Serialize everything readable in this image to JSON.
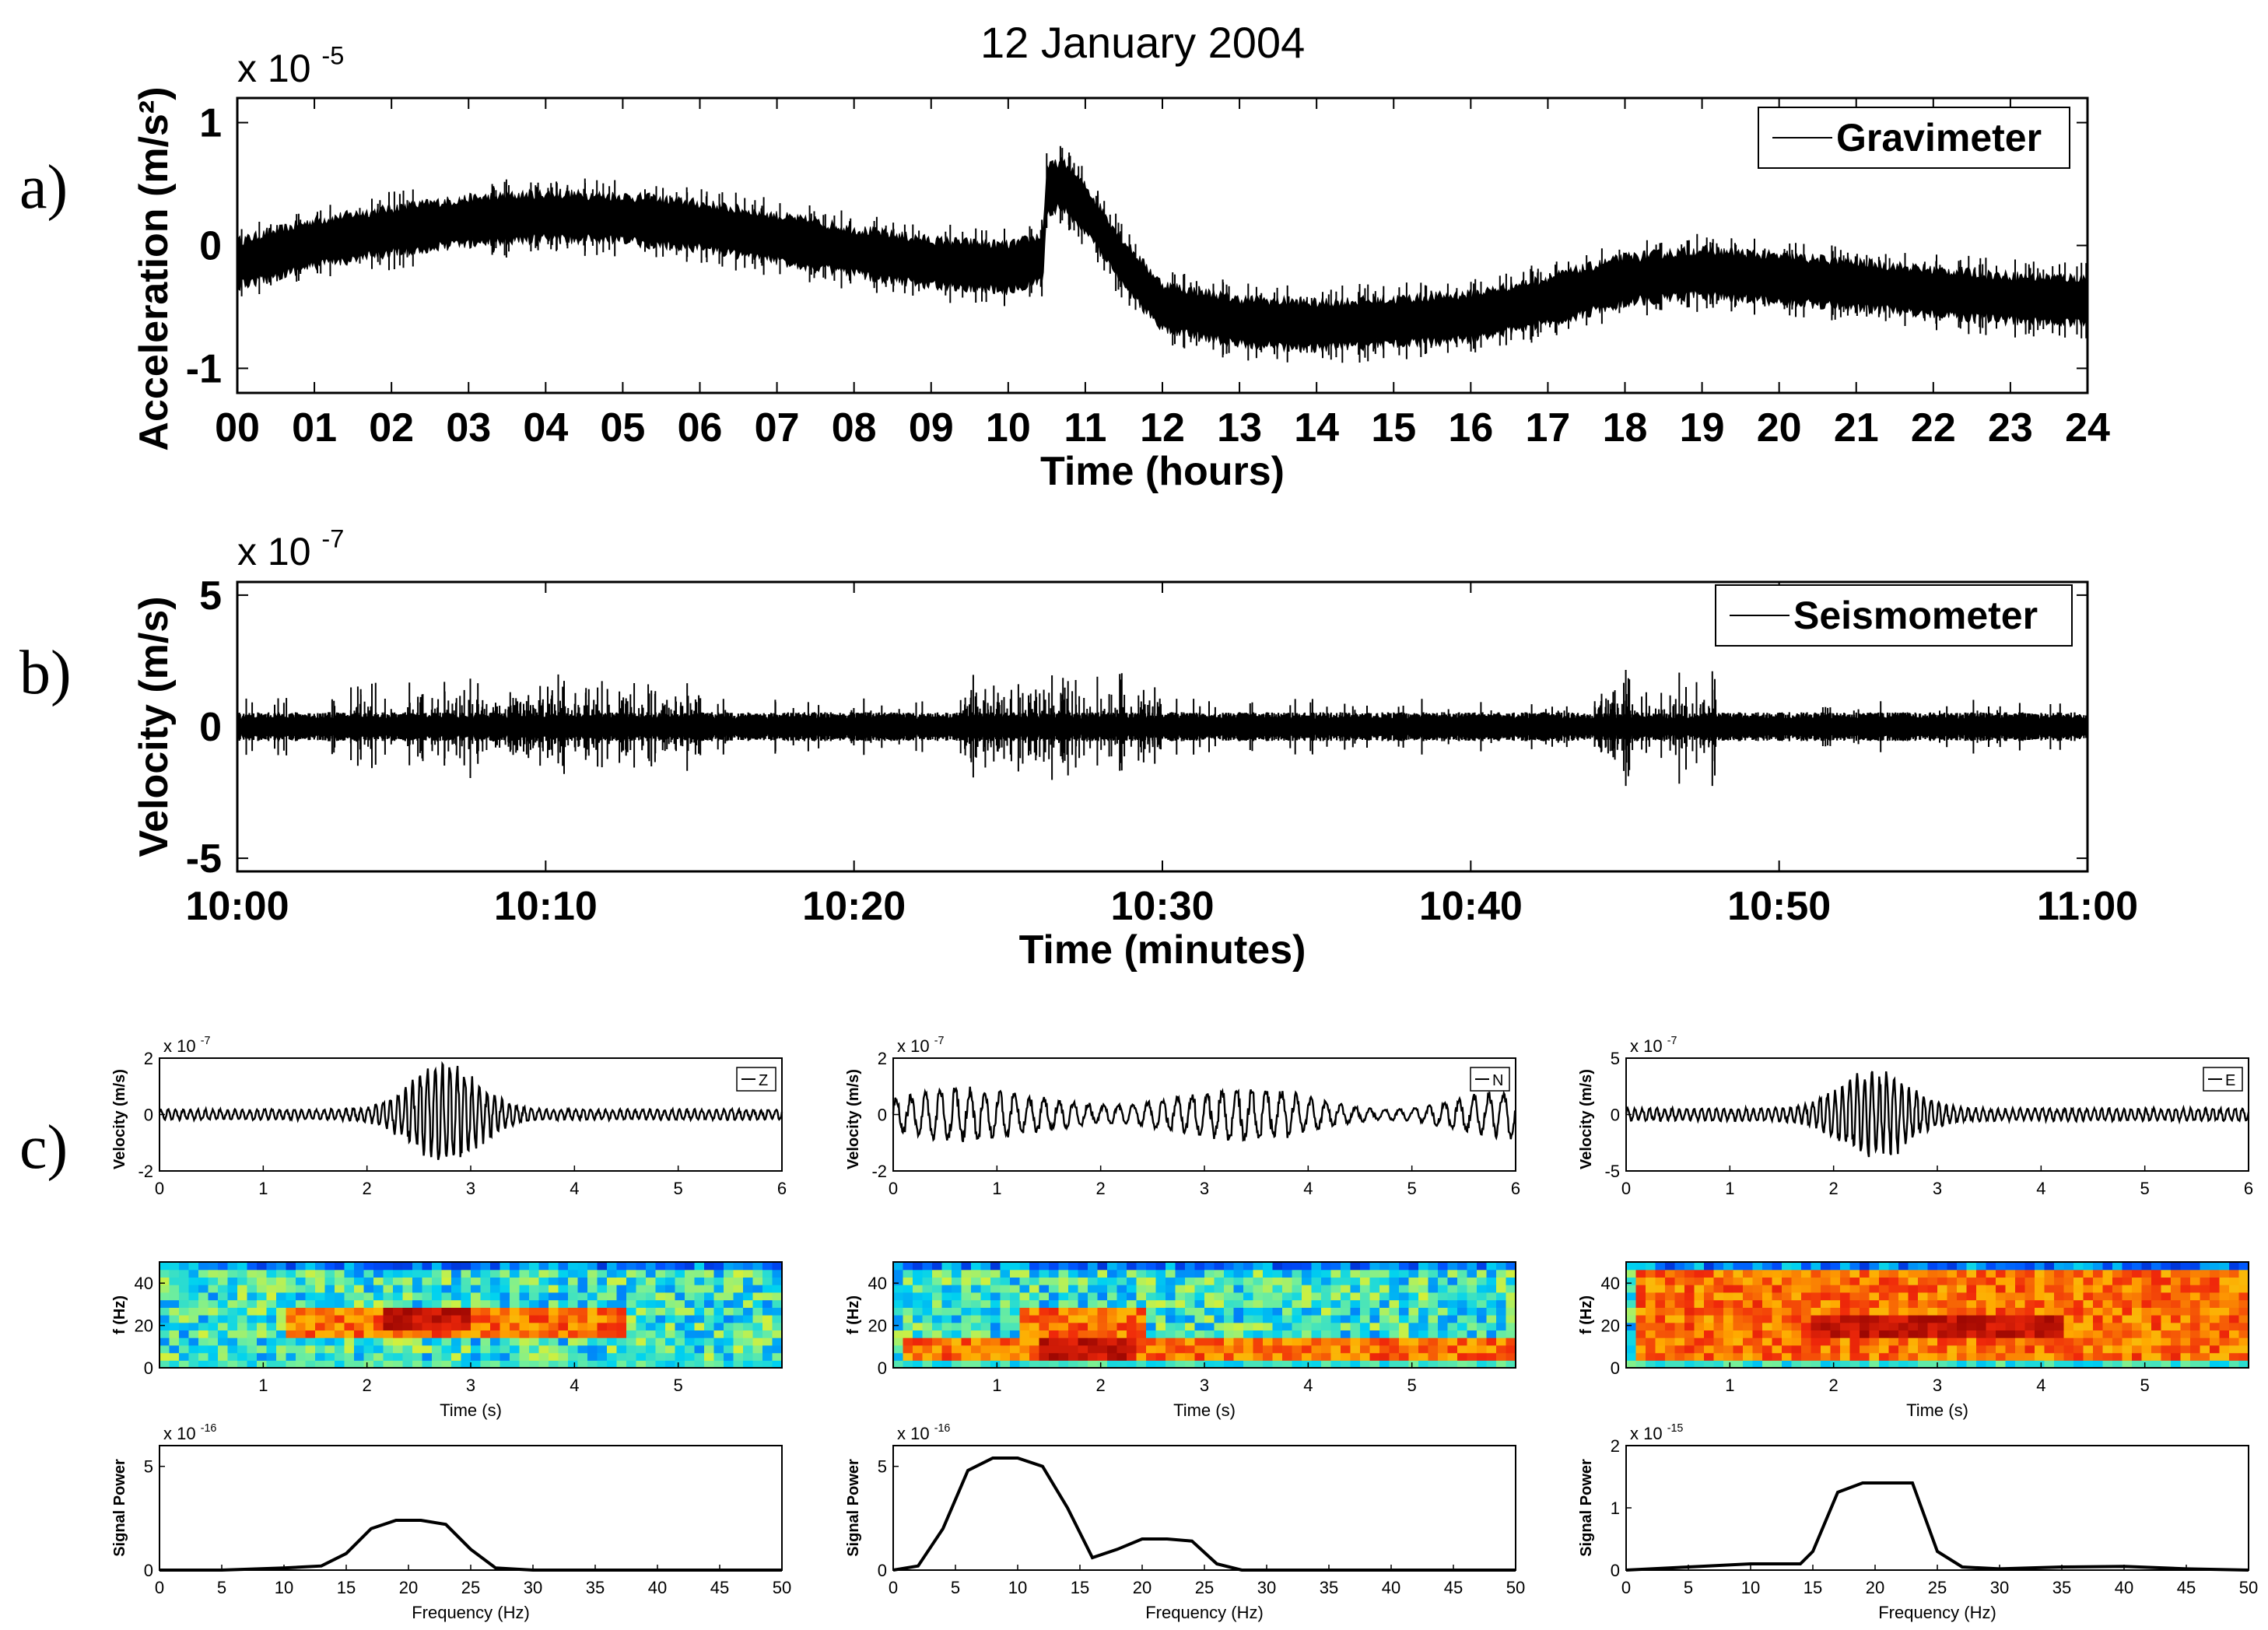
{
  "figure": {
    "title": "12 January 2004",
    "panel_labels": [
      "a)",
      "b)",
      "c)"
    ]
  },
  "chart_data": [
    {
      "id": "a",
      "type": "line",
      "title": "",
      "ylabel": "Acceleration (m/s²)",
      "yexponent_label": "x 10",
      "yexponent": "-5",
      "xlabel": "Time (hours)",
      "legend": "Gravimeter",
      "legend_position": "top-right",
      "xlim": [
        0,
        24
      ],
      "ylim": [
        -1.2,
        1.2
      ],
      "yticks": [
        1,
        0,
        -1
      ],
      "ytick_labels": [
        "1",
        "0",
        "-1"
      ],
      "xtick_labels": [
        "00",
        "01",
        "02",
        "03",
        "04",
        "05",
        "06",
        "07",
        "08",
        "09",
        "10",
        "11",
        "12",
        "13",
        "14",
        "15",
        "16",
        "17",
        "18",
        "19",
        "20",
        "21",
        "22",
        "23",
        "24"
      ],
      "envelope_x": [
        0,
        1,
        2,
        3,
        4,
        5,
        6,
        7,
        8,
        9,
        10,
        10.45,
        10.5,
        10.7,
        11.0,
        11.5,
        12,
        13,
        14,
        15,
        16,
        17,
        18,
        19,
        20,
        21,
        22,
        23,
        24
      ],
      "envelope_mean": [
        -0.15,
        0.02,
        0.12,
        0.2,
        0.24,
        0.22,
        0.16,
        0.06,
        -0.05,
        -0.14,
        -0.18,
        -0.1,
        0.45,
        0.5,
        0.3,
        -0.15,
        -0.5,
        -0.62,
        -0.65,
        -0.62,
        -0.58,
        -0.45,
        -0.28,
        -0.22,
        -0.27,
        -0.32,
        -0.38,
        -0.43,
        -0.45
      ],
      "envelope_halfwidth": 0.18
    },
    {
      "id": "b",
      "type": "line",
      "ylabel": "Velocity (m/s)",
      "yexponent_label": "x 10",
      "yexponent": "-7",
      "xlabel": "Time (minutes)",
      "legend": "Seismometer",
      "legend_position": "top-right",
      "xlim": [
        0,
        60
      ],
      "ylim": [
        -5.5,
        5.5
      ],
      "yticks": [
        5,
        0,
        -5
      ],
      "ytick_labels": [
        "5",
        "0",
        "-5"
      ],
      "xtick_labels": [
        "10:00",
        "10:10",
        "10:20",
        "10:30",
        "10:40",
        "10:50",
        "11:00"
      ],
      "noise_halfwidth": 0.5,
      "burst_windows_min": [
        [
          3.5,
          4.5
        ],
        [
          5.5,
          15
        ],
        [
          23.5,
          30
        ],
        [
          44,
          48
        ]
      ],
      "peak_amplitude": 2.0
    },
    {
      "id": "c-wave",
      "columns": [
        {
          "component": "Z",
          "ylabel": "Velocity (m/s)",
          "yexponent_label": "x 10",
          "yexponent": "-7",
          "ylim": [
            -2,
            2
          ],
          "ytick_labels": [
            "2",
            "0",
            "-2"
          ],
          "xlim": [
            0,
            6
          ],
          "xtick_labels": [
            "0",
            "1",
            "2",
            "3",
            "4",
            "5",
            "6"
          ],
          "burst_center_s": 2.75,
          "burst_amp": 1.9,
          "base_amp": 0.2
        },
        {
          "component": "N",
          "ylabel": "Velocity (m/s)",
          "yexponent_label": "x 10",
          "yexponent": "-7",
          "ylim": [
            -2,
            2
          ],
          "ytick_labels": [
            "2",
            "0",
            "-2"
          ],
          "xlim": [
            0,
            6
          ],
          "xtick_labels": [
            "0",
            "1",
            "2",
            "3",
            "4",
            "5",
            "6"
          ],
          "burst_center_s": 2.0,
          "burst_amp": 1.9,
          "base_amp": 1.0
        },
        {
          "component": "E",
          "ylabel": "Velocity (m/s)",
          "yexponent_label": "x 10",
          "yexponent": "-7",
          "ylim": [
            -5,
            5
          ],
          "ytick_labels": [
            "5",
            "0",
            "-5"
          ],
          "xlim": [
            0,
            6
          ],
          "xtick_labels": [
            "0",
            "1",
            "2",
            "3",
            "4",
            "5",
            "6"
          ],
          "burst_center_s": 2.4,
          "burst_amp": 4.3,
          "base_amp": 0.6
        }
      ]
    },
    {
      "id": "c-spec",
      "type": "heatmap",
      "ylabel": "f (Hz)",
      "xlabel": "Time (s)",
      "ylim": [
        0,
        50
      ],
      "ytick_labels": [
        "40",
        "20",
        "0"
      ],
      "xtick_labels": [
        "1",
        "2",
        "3",
        "4",
        "5"
      ],
      "columns": [
        {
          "hot_bands": [
            [
              1.2,
              4.5,
              15,
              28
            ]
          ],
          "core": [
            2.2,
            3.0,
            18,
            28
          ]
        },
        {
          "hot_bands": [
            [
              0.1,
              6.0,
              3,
              15
            ],
            [
              1.2,
              2.4,
              15,
              28
            ]
          ],
          "core": [
            1.4,
            2.3,
            5,
            15
          ]
        },
        {
          "hot_bands": [
            [
              0.1,
              6.0,
              5,
              45
            ]
          ],
          "core": [
            1.8,
            4.2,
            14,
            26
          ]
        }
      ]
    },
    {
      "id": "c-power",
      "type": "line",
      "ylabel": "Signal Power",
      "xlabel": "Frequency (Hz)",
      "xlim": [
        0,
        50
      ],
      "xtick_labels": [
        "0",
        "5",
        "10",
        "15",
        "20",
        "25",
        "30",
        "35",
        "40",
        "45",
        "50"
      ],
      "columns": [
        {
          "yexponent_label": "x 10",
          "yexponent": "-16",
          "ylim": [
            0,
            6
          ],
          "ytick_labels": [
            "5",
            "0"
          ],
          "x": [
            0,
            5,
            10,
            13,
            15,
            17,
            19,
            21,
            23,
            25,
            27,
            30,
            50
          ],
          "y": [
            0,
            0,
            0.1,
            0.2,
            0.8,
            2.0,
            2.4,
            2.4,
            2.2,
            1.0,
            0.1,
            0,
            0
          ]
        },
        {
          "yexponent_label": "x 10",
          "yexponent": "-16",
          "ylim": [
            0,
            6
          ],
          "ytick_labels": [
            "5",
            "0"
          ],
          "x": [
            0,
            2,
            4,
            6,
            8,
            10,
            12,
            14,
            16,
            18,
            20,
            22,
            24,
            26,
            28,
            50
          ],
          "y": [
            0,
            0.2,
            2.0,
            4.8,
            5.4,
            5.4,
            5.0,
            3.0,
            0.6,
            1.0,
            1.5,
            1.5,
            1.4,
            0.3,
            0,
            0
          ]
        },
        {
          "yexponent_label": "x 10",
          "yexponent": "-15",
          "ylim": [
            0,
            2
          ],
          "ytick_labels": [
            "2",
            "1",
            "0"
          ],
          "x": [
            0,
            5,
            10,
            14,
            15,
            17,
            19,
            21,
            23,
            25,
            27,
            30,
            35,
            40,
            45,
            50
          ],
          "y": [
            0,
            0.05,
            0.1,
            0.1,
            0.3,
            1.25,
            1.4,
            1.4,
            1.4,
            0.3,
            0.05,
            0.02,
            0.05,
            0.06,
            0.02,
            0
          ]
        }
      ]
    }
  ]
}
